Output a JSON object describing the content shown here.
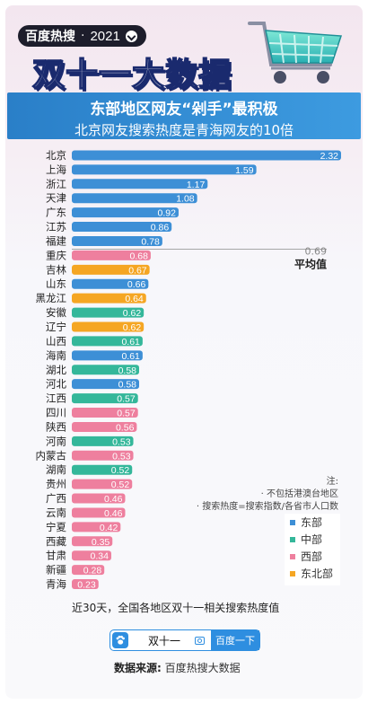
{
  "header": {
    "brand": "百度热搜",
    "sep": "·",
    "year": "2021",
    "title": "双十一大数据",
    "banner_line1": "东部地区网友“剁手”最积极",
    "banner_line2": "北京网友搜索热度是青海网友的10倍"
  },
  "chart_data": {
    "type": "bar",
    "orientation": "horizontal",
    "categories": [
      "北京",
      "上海",
      "浙江",
      "天津",
      "广东",
      "江苏",
      "福建",
      "重庆",
      "吉林",
      "山东",
      "黑龙江",
      "安徽",
      "辽宁",
      "山西",
      "海南",
      "湖北",
      "河北",
      "江西",
      "四川",
      "陕西",
      "河南",
      "内蒙古",
      "湖南",
      "贵州",
      "广西",
      "云南",
      "宁夏",
      "西藏",
      "甘肃",
      "新疆",
      "青海"
    ],
    "values": [
      2.32,
      1.59,
      1.17,
      1.08,
      0.92,
      0.86,
      0.78,
      0.68,
      0.67,
      0.66,
      0.64,
      0.62,
      0.62,
      0.61,
      0.61,
      0.58,
      0.58,
      0.57,
      0.57,
      0.56,
      0.53,
      0.53,
      0.52,
      0.52,
      0.46,
      0.46,
      0.42,
      0.35,
      0.34,
      0.28,
      0.23
    ],
    "regions": [
      "东部",
      "东部",
      "东部",
      "东部",
      "东部",
      "东部",
      "东部",
      "西部",
      "东北部",
      "东部",
      "东北部",
      "中部",
      "东北部",
      "中部",
      "东部",
      "中部",
      "东部",
      "中部",
      "西部",
      "西部",
      "中部",
      "西部",
      "中部",
      "西部",
      "西部",
      "西部",
      "西部",
      "西部",
      "西部",
      "西部",
      "西部"
    ],
    "region_colors": {
      "东部": "#3d8fd6",
      "中部": "#34b79a",
      "西部": "#ee7f9e",
      "东北部": "#f5a623"
    },
    "average": {
      "value": 0.69,
      "label": "平均值"
    },
    "xlim": [
      0,
      2.32
    ]
  },
  "notes": {
    "title": "注:",
    "line1": "· 不包括港澳台地区",
    "line2": "· 搜索热度=搜索指数/各省市人口数"
  },
  "legend": [
    "东部",
    "中部",
    "西部",
    "东北部"
  ],
  "footnote": "近30天，全国各地区双十一相关搜索热度值",
  "search": {
    "query": "双十一",
    "button": "百度一下"
  },
  "source": {
    "label": "数据来源:",
    "value": "百度热搜大数据"
  }
}
